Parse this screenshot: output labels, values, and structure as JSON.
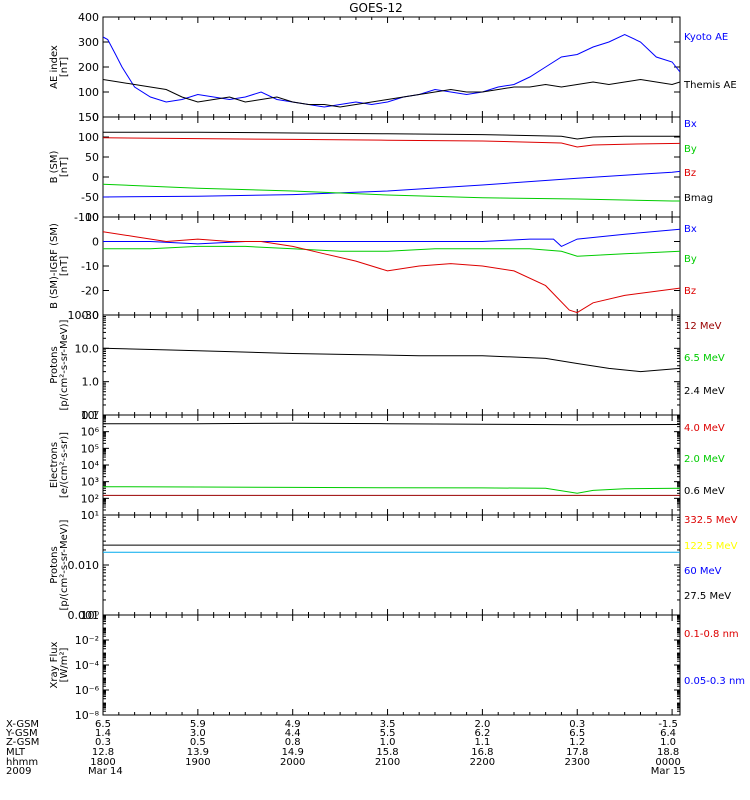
{
  "title": "GOES-12",
  "colors": {
    "black": "#000000",
    "blue": "#0000ff",
    "red": "#dd0000",
    "green": "#00cc00",
    "darkred": "#990000",
    "yellow": "#ffff00",
    "cyan": "#00aaee"
  },
  "ephemeris": {
    "row_labels": [
      "X-GSM",
      "Y-GSM",
      "Z-GSM",
      "MLT",
      "hhmm",
      "2009"
    ],
    "columns": [
      [
        "6.5",
        "1.4",
        "0.3",
        "12.8",
        "1800",
        "Mar 14"
      ],
      [
        "5.9",
        "3.0",
        "0.5",
        "13.9",
        "1900",
        ""
      ],
      [
        "4.9",
        "4.4",
        "0.8",
        "14.9",
        "2000",
        ""
      ],
      [
        "3.5",
        "5.5",
        "1.0",
        "15.8",
        "2100",
        ""
      ],
      [
        "2.0",
        "6.2",
        "1.1",
        "16.8",
        "2200",
        ""
      ],
      [
        "0.3",
        "6.5",
        "1.2",
        "17.8",
        "2300",
        ""
      ],
      [
        "-1.5",
        "6.4",
        "1.0",
        "18.8",
        "0000",
        "Mar 15"
      ]
    ]
  },
  "chart_data": [
    {
      "type": "line",
      "ylabel": [
        "AE index",
        "[nT]"
      ],
      "yscale": "linear",
      "ylim": [
        0,
        400
      ],
      "yticks": [
        0,
        100,
        200,
        300,
        400
      ],
      "ytick_labels": [
        "0",
        "100",
        "200",
        "300",
        "400"
      ],
      "series": [
        {
          "name": "Kyoto AE",
          "color": "#0000ff",
          "x": [
            0,
            3,
            8,
            12,
            20,
            30,
            40,
            50,
            60,
            70,
            80,
            90,
            100,
            110,
            120,
            130,
            140,
            150,
            160,
            170,
            180,
            190,
            200,
            210,
            220,
            230,
            240,
            250,
            260,
            270,
            280,
            290,
            300,
            310,
            320,
            330,
            340,
            350,
            360,
            365
          ],
          "y": [
            320,
            310,
            250,
            200,
            120,
            80,
            60,
            70,
            90,
            80,
            70,
            80,
            100,
            70,
            60,
            50,
            40,
            50,
            60,
            50,
            60,
            80,
            90,
            110,
            100,
            90,
            100,
            120,
            130,
            160,
            200,
            240,
            250,
            280,
            300,
            330,
            300,
            240,
            220,
            180
          ]
        },
        {
          "name": "Themis AE",
          "color": "#000000",
          "x": [
            0,
            10,
            20,
            30,
            40,
            50,
            60,
            70,
            80,
            90,
            100,
            110,
            120,
            130,
            140,
            150,
            160,
            170,
            180,
            190,
            200,
            210,
            220,
            230,
            240,
            250,
            260,
            270,
            280,
            290,
            300,
            310,
            320,
            330,
            340,
            350,
            360,
            365
          ],
          "y": [
            150,
            140,
            130,
            120,
            110,
            80,
            60,
            70,
            80,
            60,
            70,
            80,
            60,
            50,
            50,
            40,
            50,
            60,
            70,
            80,
            90,
            100,
            110,
            100,
            100,
            110,
            120,
            120,
            130,
            120,
            130,
            140,
            130,
            140,
            150,
            140,
            130,
            140
          ]
        }
      ],
      "legend": [
        "Kyoto AE",
        "Themis AE"
      ],
      "legend_colors": [
        "#0000ff",
        "#000000"
      ]
    },
    {
      "type": "line",
      "ylabel": [
        "B (SM)",
        "[nT]"
      ],
      "yscale": "linear",
      "ylim": [
        -100,
        150
      ],
      "yticks": [
        -100,
        -50,
        0,
        50,
        100,
        150
      ],
      "ytick_labels": [
        "-100",
        "-50",
        "0",
        "50",
        "100",
        "150"
      ],
      "series": [
        {
          "name": "Bx",
          "color": "#0000ff",
          "x": [
            0,
            60,
            120,
            180,
            240,
            300,
            360,
            365
          ],
          "y": [
            -50,
            -48,
            -44,
            -35,
            -20,
            -3,
            12,
            14
          ]
        },
        {
          "name": "By",
          "color": "#00cc00",
          "x": [
            0,
            60,
            120,
            180,
            240,
            300,
            360,
            365
          ],
          "y": [
            -18,
            -28,
            -35,
            -45,
            -52,
            -55,
            -60,
            -60
          ]
        },
        {
          "name": "Bz",
          "color": "#dd0000",
          "x": [
            0,
            60,
            120,
            180,
            240,
            290,
            300,
            310,
            330,
            365
          ],
          "y": [
            98,
            96,
            94,
            92,
            90,
            85,
            75,
            80,
            82,
            84
          ]
        },
        {
          "name": "Bmag",
          "color": "#000000",
          "x": [
            0,
            60,
            120,
            180,
            240,
            290,
            300,
            310,
            330,
            365
          ],
          "y": [
            112,
            112,
            110,
            108,
            106,
            102,
            95,
            100,
            102,
            102
          ]
        }
      ],
      "legend": [
        "Bx",
        "By",
        "Bz",
        "Bmag"
      ],
      "legend_colors": [
        "#0000ff",
        "#00cc00",
        "#dd0000",
        "#000000"
      ]
    },
    {
      "type": "line",
      "ylabel": [
        "B (SM)-IGRF (SM)",
        "[nT]"
      ],
      "yscale": "linear",
      "ylim": [
        -30,
        10
      ],
      "yticks": [
        -30,
        -20,
        -10,
        0,
        10
      ],
      "ytick_labels": [
        "-30",
        "-20",
        "-10",
        "0",
        "10"
      ],
      "series": [
        {
          "name": "Bx",
          "color": "#0000ff",
          "x": [
            0,
            30,
            60,
            90,
            120,
            150,
            180,
            210,
            240,
            270,
            285,
            290,
            300,
            330,
            365
          ],
          "y": [
            0,
            0,
            -1,
            0,
            0,
            0,
            0,
            0,
            0,
            1,
            1,
            -2,
            1,
            3,
            5
          ]
        },
        {
          "name": "By",
          "color": "#00cc00",
          "x": [
            0,
            30,
            60,
            90,
            120,
            150,
            180,
            210,
            240,
            270,
            290,
            300,
            330,
            365
          ],
          "y": [
            -3,
            -3,
            -2,
            -2,
            -3,
            -4,
            -4,
            -3,
            -3,
            -3,
            -4,
            -6,
            -5,
            -4
          ]
        },
        {
          "name": "Bz",
          "color": "#dd0000",
          "x": [
            0,
            20,
            40,
            60,
            80,
            100,
            120,
            140,
            160,
            180,
            200,
            220,
            240,
            260,
            280,
            295,
            300,
            310,
            330,
            365
          ],
          "y": [
            4,
            2,
            0,
            1,
            0,
            0,
            -2,
            -5,
            -8,
            -12,
            -10,
            -9,
            -10,
            -12,
            -18,
            -28,
            -29,
            -25,
            -22,
            -19
          ]
        }
      ],
      "legend": [
        "Bx",
        "By",
        "Bz"
      ],
      "legend_colors": [
        "#0000ff",
        "#00cc00",
        "#dd0000"
      ]
    },
    {
      "type": "line",
      "ylabel": [
        "Protons",
        "[p/(cm²-s-sr-MeV)]"
      ],
      "yscale": "log",
      "ylim": [
        0.1,
        100
      ],
      "yticks": [
        0.1,
        1,
        10,
        100
      ],
      "ytick_labels": [
        "0.1",
        "1.0",
        "10.0",
        "100.0"
      ],
      "series": [
        {
          "name": "12 MeV",
          "color": "#dd0000",
          "x": [],
          "y": []
        },
        {
          "name": "6.5 MeV",
          "color": "#00cc00",
          "x": [],
          "y": []
        },
        {
          "name": "2.4 MeV",
          "color": "#000000",
          "x": [
            0,
            40,
            80,
            120,
            160,
            200,
            240,
            280,
            300,
            320,
            340,
            365
          ],
          "y": [
            10,
            9,
            8,
            7,
            6.5,
            6,
            6,
            5,
            3.5,
            2.5,
            2,
            2.5
          ]
        }
      ],
      "legend": [
        "12 MeV",
        "6.5 MeV",
        "2.4 MeV"
      ],
      "legend_colors": [
        "#990000",
        "#00cc00",
        "#000000"
      ]
    },
    {
      "type": "line",
      "ylabel": [
        "Electrons",
        "[e/(cm²-s-sr)]"
      ],
      "yscale": "log",
      "ylim": [
        10,
        10000000
      ],
      "yticks": [
        10,
        100,
        1000,
        10000,
        100000,
        1000000,
        10000000
      ],
      "ytick_labels": [
        "10¹",
        "10²",
        "10³",
        "10⁴",
        "10⁵",
        "10⁶",
        "10⁷"
      ],
      "series": [
        {
          "name": "4.0 MeV",
          "color": "#990000",
          "x": [
            0,
            120,
            240,
            365
          ],
          "y": [
            150,
            150,
            150,
            150
          ]
        },
        {
          "name": "2.0 MeV",
          "color": "#00cc00",
          "x": [
            0,
            60,
            120,
            180,
            240,
            280,
            300,
            310,
            330,
            365
          ],
          "y": [
            500,
            480,
            450,
            430,
            420,
            400,
            200,
            300,
            380,
            400
          ]
        },
        {
          "name": "0.6 MeV",
          "color": "#000000",
          "x": [
            0,
            60,
            120,
            180,
            240,
            300,
            365
          ],
          "y": [
            3000000,
            3000000,
            3200000,
            3000000,
            2800000,
            2600000,
            2700000
          ]
        }
      ],
      "legend": [
        "4.0 MeV",
        "2.0 MeV",
        "0.6 MeV"
      ],
      "legend_colors": [
        "#dd0000",
        "#00cc00",
        "#000000"
      ]
    },
    {
      "type": "line",
      "ylabel": [
        "Protons",
        "[p/(cm²-s-sr-MeV)]"
      ],
      "yscale": "log",
      "ylim": [
        0.001,
        0.1
      ],
      "yticks": [
        0.001,
        0.01
      ],
      "ytick_labels": [
        "0.001",
        "0.010"
      ],
      "series": [
        {
          "name": "332.5 MeV",
          "color": "#dd0000",
          "x": [],
          "y": []
        },
        {
          "name": "122.5 MeV",
          "color": "#ffff00",
          "x": [],
          "y": []
        },
        {
          "name": "60 MeV",
          "color": "#00aaee",
          "x": [
            0,
            120,
            240,
            365
          ],
          "y": [
            0.018,
            0.018,
            0.018,
            0.018
          ]
        },
        {
          "name": "27.5 MeV",
          "color": "#000000",
          "x": [
            0,
            120,
            240,
            365
          ],
          "y": [
            0.025,
            0.025,
            0.025,
            0.025
          ]
        }
      ],
      "legend": [
        "332.5 MeV",
        "122.5 MeV",
        "60 MeV",
        "27.5 MeV"
      ],
      "legend_colors": [
        "#dd0000",
        "#ffff00",
        "#0000ff",
        "#000000"
      ]
    },
    {
      "type": "line",
      "ylabel": [
        "Xray Flux",
        "[W/m²]"
      ],
      "yscale": "log",
      "ylim": [
        1e-08,
        1
      ],
      "yticks": [
        1e-08,
        1e-06,
        0.0001,
        0.01,
        1
      ],
      "ytick_labels": [
        "10⁻⁸",
        "10⁻⁶",
        "10⁻⁴",
        "10⁻²",
        "10⁰"
      ],
      "series": [
        {
          "name": "0.1-0.8 nm",
          "color": "#dd0000",
          "x": [],
          "y": []
        },
        {
          "name": "0.05-0.3 nm",
          "color": "#0000ff",
          "x": [],
          "y": []
        }
      ],
      "legend": [
        "0.1-0.8 nm",
        "0.05-0.3 nm"
      ],
      "legend_colors": [
        "#dd0000",
        "#0000ff"
      ]
    }
  ],
  "x_axis": {
    "xlim": [
      0,
      365
    ],
    "major_ticks": [
      0,
      60,
      120,
      180,
      240,
      300,
      360
    ]
  }
}
